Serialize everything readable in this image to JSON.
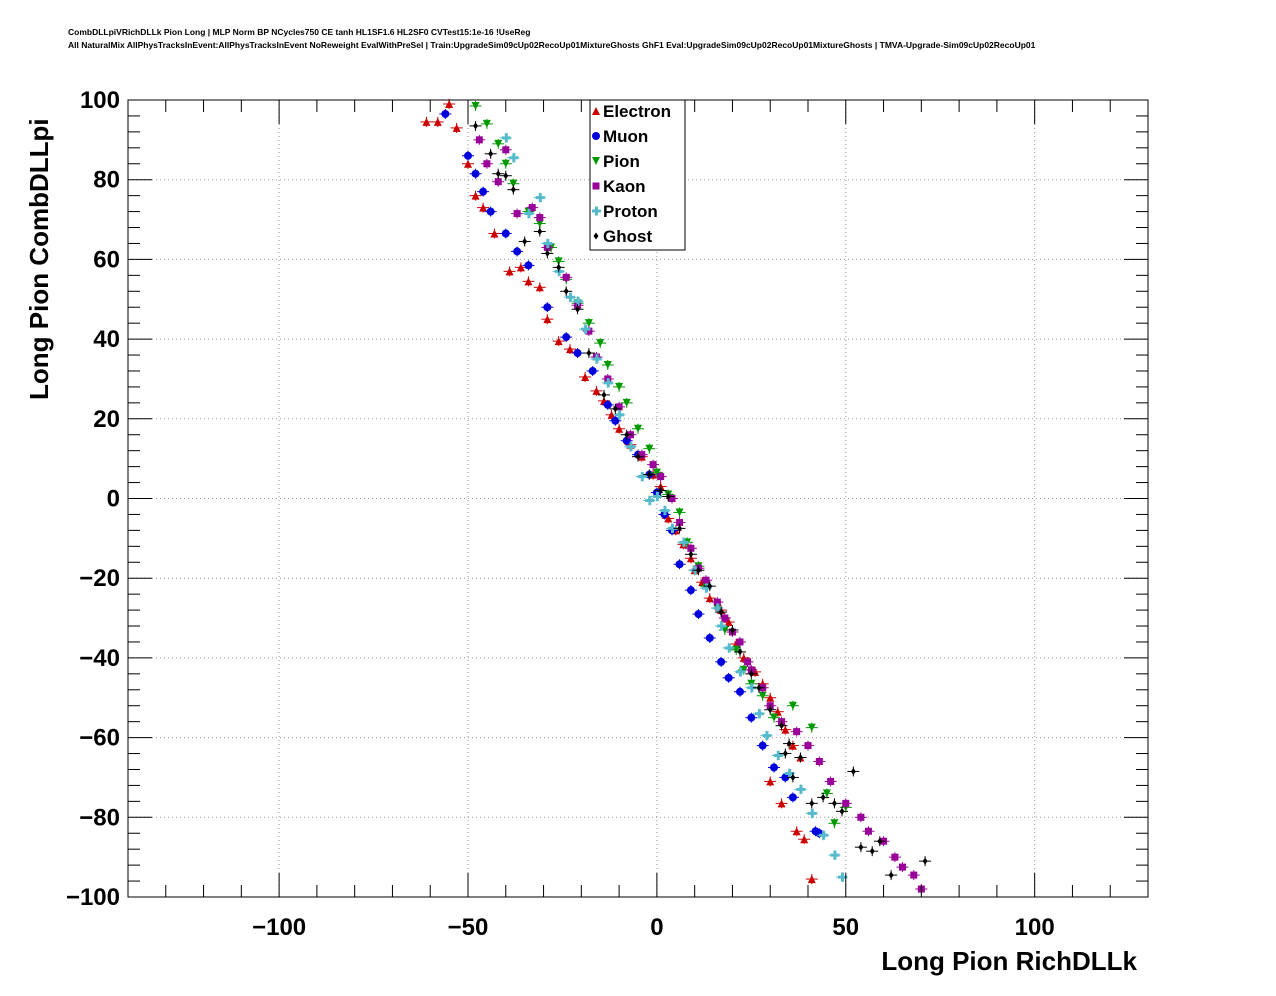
{
  "header": {
    "line1": "CombDLLpiVRichDLLk Pion Long | MLP Norm BP NCycles750 CE tanh HL1SF1.6 HL2SF0 CVTest15:1e-16 !UseReg",
    "line2": "All NaturalMix AllPhysTracksInEvent:AllPhysTracksInEvent NoReweight EvalWithPreSel | Train:UpgradeSim09cUp02RecoUp01MixtureGhosts GhF1 Eval:UpgradeSim09cUp02RecoUp01MixtureGhosts | TMVA-Upgrade-Sim09cUp02RecoUp01"
  },
  "chart_data": {
    "type": "scatter",
    "xlabel": "Long Pion RichDLLk",
    "ylabel": "Long Pion CombDLLpi",
    "xlim": [
      -140,
      130
    ],
    "ylim": [
      -100,
      100
    ],
    "xticks": [
      -100,
      -50,
      0,
      50,
      100
    ],
    "yticks": [
      100,
      80,
      60,
      40,
      20,
      0,
      -20,
      -40,
      -60,
      -80,
      -100
    ],
    "xtick_labels": [
      "−100",
      "−50",
      "0",
      "50",
      "100"
    ],
    "ytick_labels": [
      "100",
      "80",
      "60",
      "40",
      "20",
      "0",
      "−20",
      "−40",
      "−60",
      "−80",
      "−100"
    ],
    "grid": true,
    "legend_position": "top-center",
    "series": [
      {
        "name": "Electron",
        "color": "#cc0000",
        "marker": "triangle-up",
        "points": [
          [
            -61,
            94.5
          ],
          [
            -58,
            94.5
          ],
          [
            -55,
            99
          ],
          [
            -53,
            93
          ],
          [
            -50,
            84
          ],
          [
            -48,
            76
          ],
          [
            -46,
            73
          ],
          [
            -43,
            66.5
          ],
          [
            -39,
            57
          ],
          [
            -36,
            58
          ],
          [
            -34,
            54.5
          ],
          [
            -31,
            53
          ],
          [
            -29,
            45
          ],
          [
            -26,
            39.5
          ],
          [
            -23,
            37.5
          ],
          [
            -19,
            30.5
          ],
          [
            -16,
            27
          ],
          [
            -14,
            24.5
          ],
          [
            -12,
            21
          ],
          [
            -10,
            17.5
          ],
          [
            -7,
            13.5
          ],
          [
            -4,
            10.5
          ],
          [
            -1,
            6
          ],
          [
            1,
            3
          ],
          [
            3,
            -5
          ],
          [
            5,
            -8
          ],
          [
            7,
            -11.5
          ],
          [
            9,
            -15
          ],
          [
            10,
            -18
          ],
          [
            12,
            -21
          ],
          [
            14,
            -25
          ],
          [
            17,
            -28
          ],
          [
            19,
            -31
          ],
          [
            21,
            -36.5
          ],
          [
            23,
            -40
          ],
          [
            26,
            -43.5
          ],
          [
            28,
            -46.5
          ],
          [
            30,
            -50
          ],
          [
            32,
            -53.5
          ],
          [
            34,
            -58
          ],
          [
            36,
            -62
          ],
          [
            38,
            -65
          ],
          [
            30,
            -71
          ],
          [
            33,
            -76.5
          ],
          [
            37,
            -83.5
          ],
          [
            39,
            -85.5
          ],
          [
            41,
            -95.5
          ]
        ]
      },
      {
        "name": "Muon",
        "color": "#0000dd",
        "marker": "circle",
        "points": [
          [
            -56,
            96.5
          ],
          [
            -50,
            86
          ],
          [
            -48,
            81.5
          ],
          [
            -46,
            77
          ],
          [
            -44,
            72
          ],
          [
            -40,
            66.5
          ],
          [
            -37,
            62
          ],
          [
            -34,
            58.5
          ],
          [
            -29,
            48
          ],
          [
            -24,
            40.5
          ],
          [
            -21,
            36.5
          ],
          [
            -17,
            32
          ],
          [
            -13,
            23.5
          ],
          [
            -11,
            19.5
          ],
          [
            -8,
            14.5
          ],
          [
            -5,
            11
          ],
          [
            -2,
            6
          ],
          [
            0,
            1.5
          ],
          [
            2,
            -4
          ],
          [
            4,
            -8
          ],
          [
            6,
            -16.5
          ],
          [
            9,
            -23
          ],
          [
            11,
            -29
          ],
          [
            14,
            -35
          ],
          [
            17,
            -41
          ],
          [
            19,
            -45
          ],
          [
            22,
            -48.5
          ],
          [
            25,
            -55
          ],
          [
            28,
            -62
          ],
          [
            31,
            -67.5
          ],
          [
            34,
            -70
          ],
          [
            36,
            -75
          ],
          [
            42,
            -83.5
          ],
          [
            43,
            -84
          ]
        ]
      },
      {
        "name": "Pion",
        "color": "#009900",
        "marker": "triangle-down",
        "points": [
          [
            -48,
            98.5
          ],
          [
            -45,
            94
          ],
          [
            -42,
            89
          ],
          [
            -40,
            84
          ],
          [
            -38,
            79
          ],
          [
            -34,
            72
          ],
          [
            -31,
            69
          ],
          [
            -28,
            63
          ],
          [
            -26,
            59.5
          ],
          [
            -24,
            55
          ],
          [
            -21,
            49
          ],
          [
            -18,
            44
          ],
          [
            -15,
            39
          ],
          [
            -13,
            33.5
          ],
          [
            -10,
            28
          ],
          [
            -8,
            24
          ],
          [
            -5,
            17.5
          ],
          [
            -2,
            12.5
          ],
          [
            0,
            6.5
          ],
          [
            3,
            1
          ],
          [
            6,
            -3.5
          ],
          [
            8,
            -11
          ],
          [
            11,
            -17
          ],
          [
            13,
            -22
          ],
          [
            16,
            -27.5
          ],
          [
            18,
            -33
          ],
          [
            21,
            -38
          ],
          [
            23,
            -43
          ],
          [
            25,
            -46.5
          ],
          [
            28,
            -49.5
          ],
          [
            31,
            -55
          ],
          [
            36,
            -52
          ],
          [
            41,
            -57.5
          ],
          [
            45,
            -74
          ],
          [
            47,
            -81.5
          ],
          [
            50,
            -77.5
          ]
        ]
      },
      {
        "name": "Kaon",
        "color": "#990099",
        "marker": "square",
        "points": [
          [
            -47,
            90
          ],
          [
            -45,
            84
          ],
          [
            -42,
            79.5
          ],
          [
            -40,
            87.5
          ],
          [
            -37,
            71.5
          ],
          [
            -33,
            73
          ],
          [
            -31,
            70.5
          ],
          [
            -29,
            63
          ],
          [
            -24,
            55.5
          ],
          [
            -21,
            48.5
          ],
          [
            -18,
            42
          ],
          [
            -16,
            35.5
          ],
          [
            -13,
            30
          ],
          [
            -10,
            23
          ],
          [
            -7,
            16
          ],
          [
            -4,
            11
          ],
          [
            -1,
            8.5
          ],
          [
            1,
            5.5
          ],
          [
            4,
            0
          ],
          [
            6,
            -6
          ],
          [
            9,
            -12.5
          ],
          [
            11,
            -17.5
          ],
          [
            13,
            -20.5
          ],
          [
            16,
            -26
          ],
          [
            18,
            -30
          ],
          [
            20,
            -33.5
          ],
          [
            22,
            -36
          ],
          [
            24,
            -41
          ],
          [
            25,
            -43
          ],
          [
            28,
            -47.5
          ],
          [
            30,
            -52
          ],
          [
            33,
            -56
          ],
          [
            37,
            -58.5
          ],
          [
            40,
            -62
          ],
          [
            43,
            -66
          ],
          [
            46,
            -71
          ],
          [
            50,
            -76.5
          ],
          [
            54,
            -80
          ],
          [
            56,
            -83.5
          ],
          [
            60,
            -86
          ],
          [
            63,
            -90
          ],
          [
            65,
            -92.5
          ],
          [
            68,
            -94.5
          ],
          [
            70,
            -98
          ]
        ]
      },
      {
        "name": "Proton",
        "color": "#55bbcc",
        "marker": "plus",
        "points": [
          [
            -40,
            90.5
          ],
          [
            -38,
            85.5
          ],
          [
            -34,
            71.5
          ],
          [
            -31,
            75.5
          ],
          [
            -29,
            64
          ],
          [
            -26,
            57
          ],
          [
            -23,
            50.5
          ],
          [
            -21,
            49.5
          ],
          [
            -19,
            42.5
          ],
          [
            -16,
            35
          ],
          [
            -13,
            29
          ],
          [
            -10,
            21
          ],
          [
            -7,
            13
          ],
          [
            -4,
            5.5
          ],
          [
            -2,
            -0.5
          ],
          [
            0,
            0.5
          ],
          [
            2,
            -3
          ],
          [
            4,
            -7.5
          ],
          [
            7,
            -11
          ],
          [
            10,
            -18
          ],
          [
            13,
            -22.5
          ],
          [
            16,
            -27.5
          ],
          [
            17,
            -32
          ],
          [
            19,
            -37.5
          ],
          [
            22,
            -43.5
          ],
          [
            25,
            -47.5
          ],
          [
            27,
            -54
          ],
          [
            29,
            -59.5
          ],
          [
            32,
            -64.5
          ],
          [
            35,
            -69
          ],
          [
            38,
            -73
          ],
          [
            41,
            -79
          ],
          [
            44,
            -84.5
          ],
          [
            47,
            -89.5
          ],
          [
            49,
            -95
          ]
        ]
      },
      {
        "name": "Ghost",
        "color": "#000000",
        "marker": "diamond",
        "points": [
          [
            -48,
            93.5
          ],
          [
            -44,
            86.5
          ],
          [
            -42,
            81.5
          ],
          [
            -40,
            81
          ],
          [
            -38,
            77.5
          ],
          [
            -35,
            64.5
          ],
          [
            -31,
            67
          ],
          [
            -29,
            61.5
          ],
          [
            -26,
            58
          ],
          [
            -24,
            52
          ],
          [
            -21,
            47.5
          ],
          [
            -18,
            36.5
          ],
          [
            -14,
            26
          ],
          [
            -11,
            22.5
          ],
          [
            -8,
            16
          ],
          [
            -5,
            10.5
          ],
          [
            -2,
            6
          ],
          [
            1,
            2
          ],
          [
            3,
            0.5
          ],
          [
            6,
            -7.5
          ],
          [
            9,
            -14
          ],
          [
            11,
            -18
          ],
          [
            14,
            -22
          ],
          [
            17,
            -28.5
          ],
          [
            20,
            -33
          ],
          [
            22,
            -38.5
          ],
          [
            25,
            -44
          ],
          [
            27,
            -47.5
          ],
          [
            30,
            -53
          ],
          [
            33,
            -57
          ],
          [
            35,
            -61.5
          ],
          [
            38,
            -65
          ],
          [
            34,
            -64
          ],
          [
            36,
            -70
          ],
          [
            41,
            -76.5
          ],
          [
            44,
            -75
          ],
          [
            47,
            -76.5
          ],
          [
            49,
            -78.5
          ],
          [
            52,
            -68.5
          ],
          [
            54,
            -87.5
          ],
          [
            57,
            -88.5
          ],
          [
            59,
            -86
          ],
          [
            62,
            -94.5
          ],
          [
            71,
            -91
          ]
        ]
      }
    ]
  }
}
